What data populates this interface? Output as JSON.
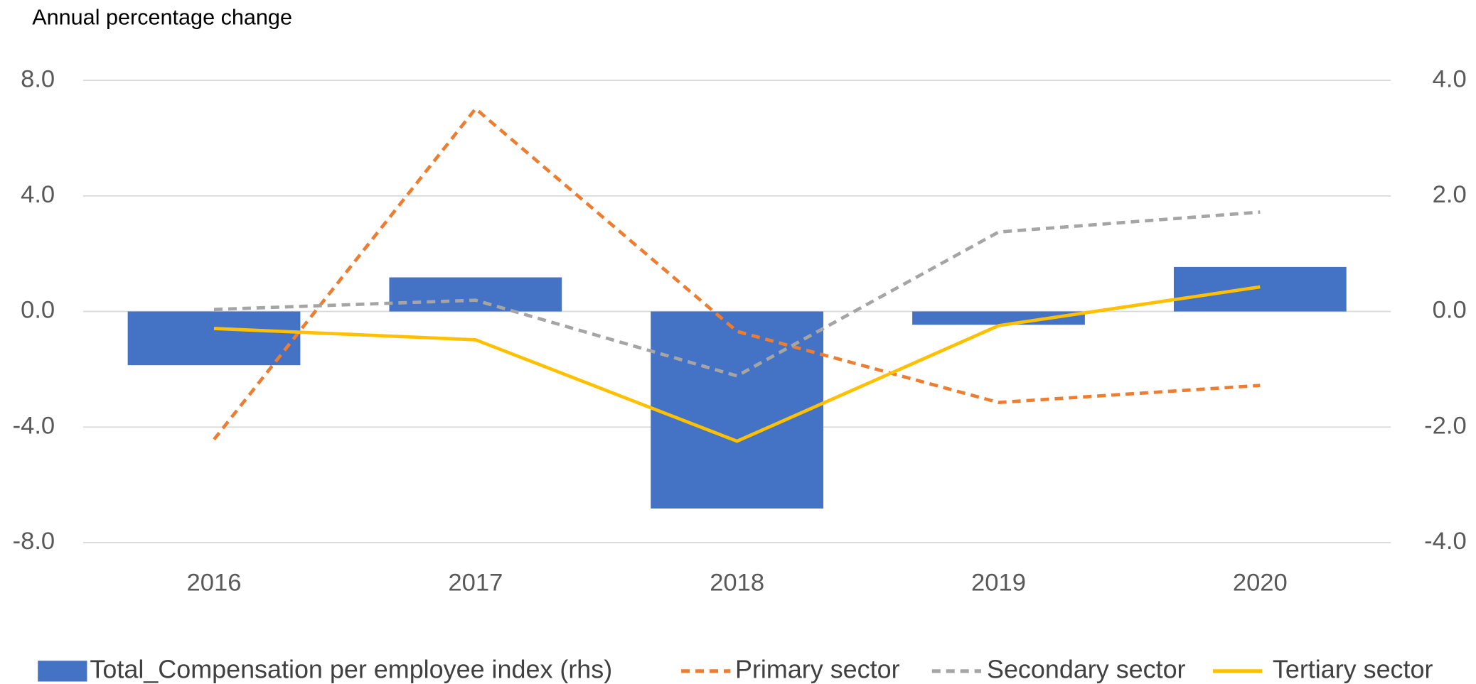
{
  "chart_data": {
    "type": "combo",
    "title": "Annual percentage change",
    "categories": [
      "2016",
      "2017",
      "2018",
      "2019",
      "2020"
    ],
    "ylim": [
      -8,
      8
    ],
    "yticks": [
      {
        "value": -8,
        "label": "-8.0"
      },
      {
        "value": -4,
        "label": "-4.0"
      },
      {
        "value": 0,
        "label": "0.0"
      },
      {
        "value": 4,
        "label": "4.0"
      },
      {
        "value": 8,
        "label": "8.0"
      }
    ],
    "y2lim": [
      -4,
      4
    ],
    "y2ticks": [
      {
        "value": -4,
        "label": "-4.0"
      },
      {
        "value": -2,
        "label": "-2.0"
      },
      {
        "value": 0,
        "label": "0.0"
      },
      {
        "value": 2,
        "label": "2.0"
      },
      {
        "value": 4,
        "label": "4.0"
      }
    ],
    "grid": true,
    "legend": "bottom",
    "series": [
      {
        "name": "Total_Compensation per employee index (rhs)",
        "type": "bar",
        "axis": "y2",
        "color": "#4472c4",
        "values": [
          -0.93,
          0.59,
          -3.41,
          -0.23,
          0.77
        ]
      },
      {
        "name": "Primary sector",
        "type": "line",
        "dashed": true,
        "color": "#ed7d31",
        "values": [
          -4.43,
          7.02,
          -0.69,
          -3.15,
          -2.56
        ]
      },
      {
        "name": "Secondary sector",
        "type": "line",
        "dashed": true,
        "color": "#a5a5a5",
        "values": [
          0.07,
          0.39,
          -2.23,
          2.75,
          3.44
        ]
      },
      {
        "name": "Tertiary sector",
        "type": "line",
        "dashed": false,
        "color": "#ffc000",
        "values": [
          -0.59,
          -0.98,
          -4.49,
          -0.49,
          0.85
        ]
      }
    ]
  }
}
